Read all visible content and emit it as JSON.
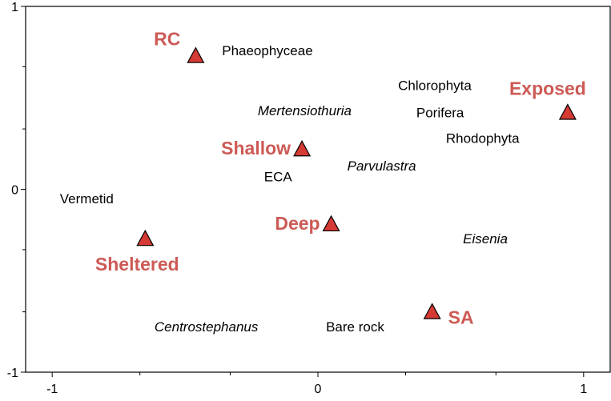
{
  "chart_data": {
    "type": "scatter",
    "title": "",
    "xlabel": "",
    "ylabel": "",
    "xlim": [
      -1.1,
      1.1
    ],
    "ylim": [
      -1,
      1
    ],
    "grid": false,
    "x_ticks": [
      {
        "value": -1,
        "label": "-1"
      },
      {
        "value": 0,
        "label": "0"
      },
      {
        "value": 1,
        "label": "1"
      }
    ],
    "x_minor_ticks": [
      -0.67,
      -0.33,
      0.33,
      0.67
    ],
    "y_ticks": [
      {
        "value": 1,
        "label": "1"
      },
      {
        "value": 0,
        "label": "0"
      },
      {
        "value": -1,
        "label": "-1"
      }
    ],
    "y_minor_ticks": [
      -0.67,
      -0.33,
      0.33,
      0.67
    ],
    "factor_color": "#cd5a55",
    "marker_fill": "#d63a34",
    "factors": [
      {
        "name": "RC",
        "x": -0.46,
        "y": 0.73,
        "label_pos": "upper-left"
      },
      {
        "name": "Exposed",
        "x": 0.94,
        "y": 0.42,
        "label_pos": "above"
      },
      {
        "name": "Shallow",
        "x": -0.06,
        "y": 0.22,
        "label_pos": "left"
      },
      {
        "name": "Deep",
        "x": 0.05,
        "y": -0.19,
        "label_pos": "left"
      },
      {
        "name": "Sheltered",
        "x": -0.65,
        "y": -0.27,
        "label_pos": "below"
      },
      {
        "name": "SA",
        "x": 0.43,
        "y": -0.67,
        "label_pos": "right"
      }
    ],
    "taxa": [
      {
        "name": "Phaeophyceae",
        "x": -0.19,
        "y": 0.76,
        "italic": false
      },
      {
        "name": "Chlorophyta",
        "x": 0.44,
        "y": 0.57,
        "italic": false
      },
      {
        "name": "Mertensiothuria",
        "x": -0.05,
        "y": 0.43,
        "italic": true
      },
      {
        "name": "Porifera",
        "x": 0.46,
        "y": 0.42,
        "italic": false
      },
      {
        "name": "Rhodophyta",
        "x": 0.62,
        "y": 0.28,
        "italic": false
      },
      {
        "name": "Parvulastra",
        "x": 0.24,
        "y": 0.13,
        "italic": true
      },
      {
        "name": "ECA",
        "x": -0.15,
        "y": 0.07,
        "italic": false
      },
      {
        "name": "Vermetid",
        "x": -0.87,
        "y": -0.05,
        "italic": false
      },
      {
        "name": "Eisenia",
        "x": 0.63,
        "y": -0.27,
        "italic": true
      },
      {
        "name": "Centrostephanus",
        "x": -0.42,
        "y": -0.75,
        "italic": true
      },
      {
        "name": "Bare rock",
        "x": 0.14,
        "y": -0.75,
        "italic": false
      }
    ]
  }
}
